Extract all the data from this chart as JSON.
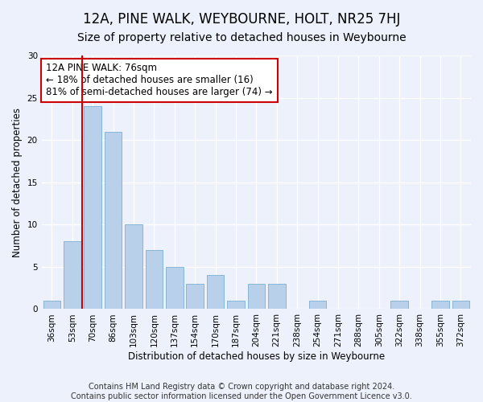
{
  "title": "12A, PINE WALK, WEYBOURNE, HOLT, NR25 7HJ",
  "subtitle": "Size of property relative to detached houses in Weybourne",
  "xlabel": "Distribution of detached houses by size in Weybourne",
  "ylabel": "Number of detached properties",
  "categories": [
    "36sqm",
    "53sqm",
    "70sqm",
    "86sqm",
    "103sqm",
    "120sqm",
    "137sqm",
    "154sqm",
    "170sqm",
    "187sqm",
    "204sqm",
    "221sqm",
    "238sqm",
    "254sqm",
    "271sqm",
    "288sqm",
    "305sqm",
    "322sqm",
    "338sqm",
    "355sqm",
    "372sqm"
  ],
  "values": [
    1,
    8,
    24,
    21,
    10,
    7,
    5,
    3,
    4,
    1,
    3,
    3,
    0,
    1,
    0,
    0,
    0,
    1,
    0,
    1,
    1
  ],
  "bar_color": "#b8d0ea",
  "bar_edge_color": "#7aafd4",
  "redline_x": 1.5,
  "annotation_text": "12A PINE WALK: 76sqm\n← 18% of detached houses are smaller (16)\n81% of semi-detached houses are larger (74) →",
  "annotation_box_color": "#ffffff",
  "annotation_box_edge_color": "#cc0000",
  "redline_color": "#cc0000",
  "ylim": [
    0,
    30
  ],
  "yticks": [
    0,
    5,
    10,
    15,
    20,
    25,
    30
  ],
  "footer": "Contains HM Land Registry data © Crown copyright and database right 2024.\nContains public sector information licensed under the Open Government Licence v3.0.",
  "bg_color": "#edf1fb",
  "grid_color": "#ffffff",
  "title_fontsize": 12,
  "subtitle_fontsize": 10,
  "axis_label_fontsize": 8.5,
  "tick_fontsize": 7.5,
  "annotation_fontsize": 8.5,
  "footer_fontsize": 7
}
